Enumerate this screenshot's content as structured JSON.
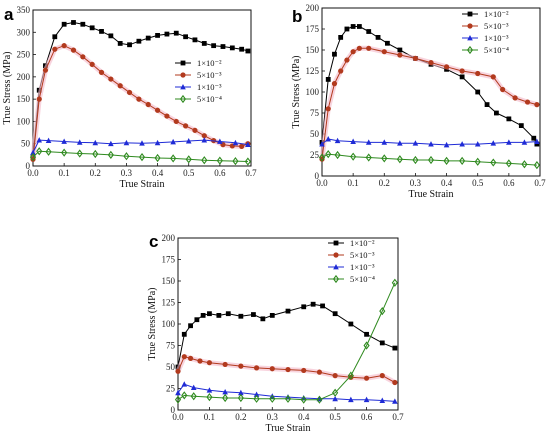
{
  "colors": {
    "black": "#000000",
    "red": "#b23a1e",
    "blue": "#1f2bd6",
    "green": "#2f8a1f",
    "axis": "#111111"
  },
  "chart_data": [
    {
      "panel_label": "a",
      "type": "line",
      "xlabel": "True Strain",
      "ylabel": "True Stress (MPa)",
      "xlim": [
        0.0,
        0.7
      ],
      "ylim": [
        0,
        350
      ],
      "xticks": [
        "0.0",
        "0.1",
        "0.2",
        "0.3",
        "0.4",
        "0.5",
        "0.6",
        "0.7"
      ],
      "yticks": [
        "0",
        "50",
        "100",
        "150",
        "200",
        "250",
        "300",
        "350"
      ],
      "legend_position": "right-middle",
      "series": [
        {
          "name": "1×10⁻²",
          "color": "#000000",
          "marker": "square",
          "x": [
            0,
            0.02,
            0.04,
            0.07,
            0.1,
            0.13,
            0.16,
            0.19,
            0.22,
            0.25,
            0.28,
            0.31,
            0.34,
            0.37,
            0.4,
            0.43,
            0.46,
            0.49,
            0.52,
            0.55,
            0.58,
            0.61,
            0.64,
            0.67,
            0.69
          ],
          "y": [
            20,
            170,
            225,
            290,
            318,
            322,
            318,
            310,
            302,
            292,
            275,
            272,
            280,
            287,
            293,
            296,
            298,
            290,
            283,
            275,
            270,
            268,
            265,
            262,
            258
          ]
        },
        {
          "name": "5×10⁻³",
          "color": "#b23a1e",
          "marker": "circle",
          "x": [
            0,
            0.02,
            0.04,
            0.07,
            0.1,
            0.13,
            0.16,
            0.19,
            0.22,
            0.25,
            0.28,
            0.31,
            0.34,
            0.37,
            0.4,
            0.43,
            0.46,
            0.49,
            0.52,
            0.55,
            0.58,
            0.61,
            0.64,
            0.67,
            0.69
          ],
          "y": [
            15,
            150,
            215,
            262,
            270,
            260,
            245,
            228,
            210,
            195,
            180,
            165,
            150,
            138,
            125,
            112,
            100,
            90,
            80,
            68,
            57,
            48,
            45,
            44,
            50
          ]
        },
        {
          "name": "1×10⁻³",
          "color": "#1f2bd6",
          "marker": "triangle",
          "x": [
            0,
            0.02,
            0.05,
            0.1,
            0.15,
            0.2,
            0.25,
            0.3,
            0.35,
            0.4,
            0.45,
            0.5,
            0.55,
            0.6,
            0.65,
            0.69
          ],
          "y": [
            30,
            58,
            57,
            55,
            53,
            52,
            50,
            52,
            51,
            52,
            54,
            56,
            58,
            55,
            52,
            48
          ]
        },
        {
          "name": "5×10⁻⁴",
          "color": "#2f8a1f",
          "marker": "diamond",
          "x": [
            0,
            0.02,
            0.05,
            0.1,
            0.15,
            0.2,
            0.25,
            0.3,
            0.35,
            0.4,
            0.45,
            0.5,
            0.55,
            0.6,
            0.65,
            0.69
          ],
          "y": [
            20,
            33,
            32,
            30,
            28,
            27,
            25,
            22,
            20,
            18,
            17,
            15,
            13,
            12,
            11,
            10
          ]
        }
      ]
    },
    {
      "panel_label": "b",
      "type": "line",
      "xlabel": "True Strain",
      "ylabel": "True Stress (MPa)",
      "xlim": [
        0.0,
        0.7
      ],
      "ylim": [
        0,
        200
      ],
      "xticks": [
        "0.0",
        "0.1",
        "0.2",
        "0.3",
        "0.4",
        "0.5",
        "0.6",
        "0.7"
      ],
      "yticks": [
        "0",
        "25",
        "50",
        "75",
        "100",
        "125",
        "150",
        "175",
        "200"
      ],
      "legend_position": "top-right",
      "series": [
        {
          "name": "1×10⁻²",
          "color": "#000000",
          "marker": "square",
          "x": [
            0,
            0.02,
            0.04,
            0.06,
            0.08,
            0.1,
            0.12,
            0.15,
            0.18,
            0.21,
            0.25,
            0.3,
            0.35,
            0.4,
            0.45,
            0.5,
            0.53,
            0.56,
            0.6,
            0.64,
            0.68,
            0.69
          ],
          "y": [
            40,
            115,
            145,
            165,
            175,
            178,
            178,
            172,
            165,
            158,
            150,
            140,
            133,
            127,
            118,
            100,
            85,
            75,
            68,
            60,
            45,
            38
          ]
        },
        {
          "name": "5×10⁻³",
          "color": "#b23a1e",
          "marker": "circle",
          "x": [
            0,
            0.02,
            0.04,
            0.06,
            0.08,
            0.1,
            0.12,
            0.15,
            0.2,
            0.25,
            0.3,
            0.35,
            0.4,
            0.45,
            0.5,
            0.55,
            0.58,
            0.62,
            0.66,
            0.69
          ],
          "y": [
            20,
            80,
            110,
            125,
            138,
            148,
            152,
            152,
            148,
            144,
            140,
            135,
            130,
            125,
            122,
            118,
            103,
            93,
            88,
            85
          ]
        },
        {
          "name": "1×10⁻³",
          "color": "#1f2bd6",
          "marker": "triangle",
          "x": [
            0,
            0.02,
            0.05,
            0.1,
            0.15,
            0.2,
            0.25,
            0.3,
            0.35,
            0.4,
            0.45,
            0.5,
            0.55,
            0.6,
            0.65,
            0.69
          ],
          "y": [
            38,
            44,
            42,
            41,
            40,
            40,
            39,
            39,
            38,
            37,
            38,
            38,
            39,
            40,
            40,
            41
          ]
        },
        {
          "name": "5×10⁻⁴",
          "color": "#2f8a1f",
          "marker": "diamond",
          "x": [
            0,
            0.02,
            0.05,
            0.1,
            0.15,
            0.2,
            0.25,
            0.3,
            0.35,
            0.4,
            0.45,
            0.5,
            0.55,
            0.6,
            0.65,
            0.69
          ],
          "y": [
            22,
            26,
            25,
            23,
            22,
            21,
            20,
            19,
            19,
            18,
            18,
            17,
            16,
            15,
            14,
            13
          ]
        }
      ]
    },
    {
      "panel_label": "c",
      "type": "line",
      "xlabel": "True Strain",
      "ylabel": "True Stress (MPa)",
      "xlim": [
        0.0,
        0.7
      ],
      "ylim": [
        0,
        200
      ],
      "xticks": [
        "0.0",
        "0.1",
        "0.2",
        "0.3",
        "0.4",
        "0.5",
        "0.6",
        "0.7"
      ],
      "yticks": [
        "0",
        "25",
        "50",
        "75",
        "100",
        "125",
        "150",
        "175",
        "200"
      ],
      "legend_position": "top-right",
      "series": [
        {
          "name": "1×10⁻²",
          "color": "#000000",
          "marker": "square",
          "x": [
            0,
            0.02,
            0.04,
            0.06,
            0.08,
            0.1,
            0.13,
            0.16,
            0.2,
            0.24,
            0.27,
            0.3,
            0.35,
            0.4,
            0.43,
            0.46,
            0.5,
            0.55,
            0.6,
            0.65,
            0.69
          ],
          "y": [
            50,
            88,
            98,
            105,
            110,
            112,
            110,
            112,
            109,
            111,
            106,
            110,
            115,
            120,
            123,
            121,
            112,
            100,
            88,
            78,
            72
          ]
        },
        {
          "name": "5×10⁻³",
          "color": "#b23a1e",
          "marker": "circle",
          "x": [
            0,
            0.02,
            0.04,
            0.07,
            0.1,
            0.15,
            0.2,
            0.25,
            0.3,
            0.35,
            0.4,
            0.45,
            0.5,
            0.55,
            0.6,
            0.65,
            0.69
          ],
          "y": [
            45,
            62,
            60,
            57,
            55,
            53,
            51,
            49,
            48,
            47,
            46,
            44,
            40,
            38,
            37,
            40,
            32
          ]
        },
        {
          "name": "1×10⁻³",
          "color": "#1f2bd6",
          "marker": "triangle",
          "x": [
            0,
            0.02,
            0.05,
            0.1,
            0.15,
            0.2,
            0.25,
            0.3,
            0.35,
            0.4,
            0.45,
            0.5,
            0.55,
            0.6,
            0.65,
            0.69
          ],
          "y": [
            20,
            30,
            26,
            23,
            21,
            20,
            18,
            16,
            15,
            14,
            13,
            13,
            12,
            12,
            11,
            10
          ]
        },
        {
          "name": "5×10⁻⁴",
          "color": "#2f8a1f",
          "marker": "diamond",
          "x": [
            0,
            0.02,
            0.05,
            0.1,
            0.15,
            0.2,
            0.25,
            0.3,
            0.35,
            0.4,
            0.45,
            0.5,
            0.55,
            0.6,
            0.65,
            0.69
          ],
          "y": [
            12,
            17,
            16,
            15,
            14,
            14,
            13,
            13,
            13,
            12,
            12,
            20,
            40,
            75,
            115,
            148
          ]
        }
      ]
    }
  ]
}
